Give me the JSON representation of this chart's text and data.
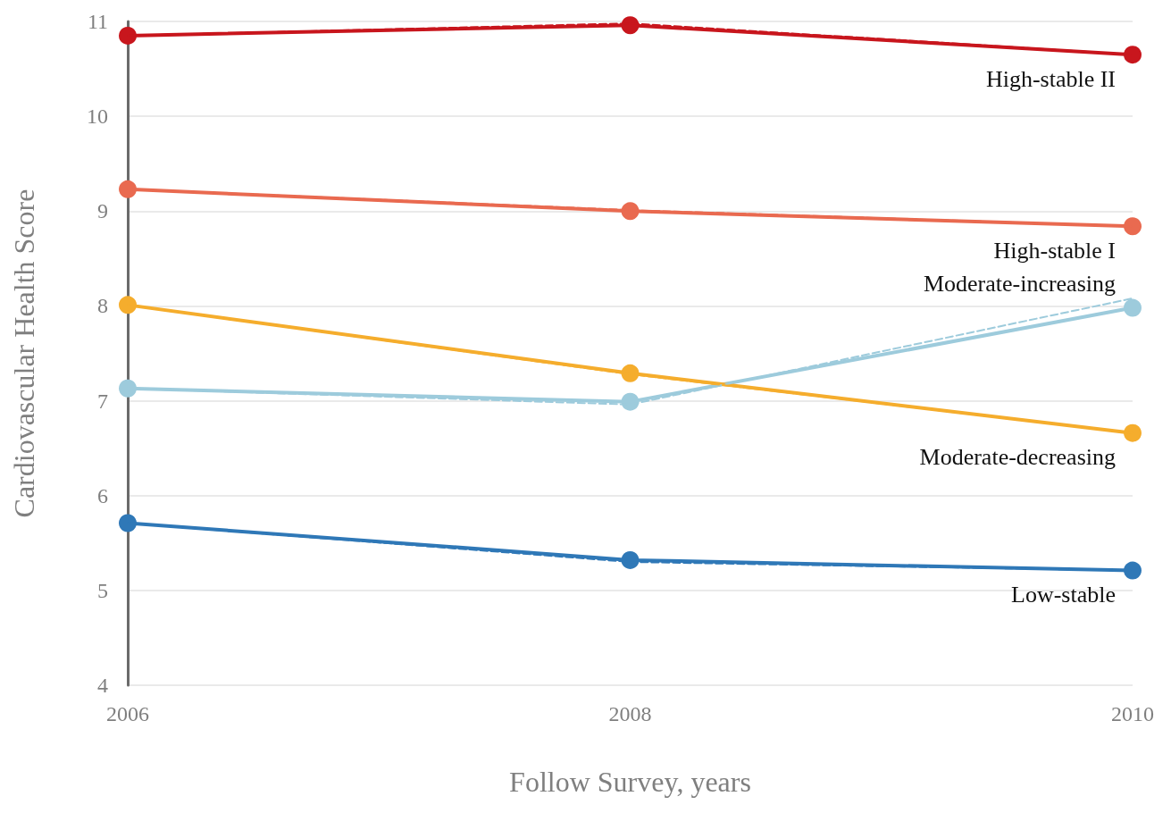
{
  "chart_data": {
    "type": "line",
    "xlabel": "Follow Survey, years",
    "ylabel": "Cardiovascular Health Score",
    "x": [
      2006,
      2008,
      2010
    ],
    "xlim": [
      2006,
      2010
    ],
    "xticks": [
      2006,
      2008,
      2010
    ],
    "ylim": [
      4,
      11
    ],
    "yticks": [
      4,
      5,
      6,
      7,
      8,
      9,
      10,
      11
    ],
    "grid": "y",
    "legend": false,
    "marker": "circle",
    "line_style": "solid",
    "series": [
      {
        "name": "High-stable II",
        "color": "#c8161d",
        "values": [
          10.85,
          10.96,
          10.65
        ]
      },
      {
        "name": "High-stable I",
        "color": "#e96a50",
        "values": [
          9.23,
          9.0,
          8.84
        ]
      },
      {
        "name": "Moderate-increasing",
        "color": "#9dcbdc",
        "values": [
          7.13,
          6.99,
          7.98
        ]
      },
      {
        "name": "Moderate-decreasing",
        "color": "#f5ad2d",
        "values": [
          8.01,
          7.29,
          6.66
        ]
      },
      {
        "name": "Low-stable",
        "color": "#2f78b7",
        "values": [
          5.71,
          5.32,
          5.21
        ]
      },
      {
        "color": "#c8161d",
        "marker": "none",
        "line_style": "dashed",
        "values": [
          10.85,
          10.98,
          10.65
        ]
      },
      {
        "color": "#e96a50",
        "marker": "none",
        "line_style": "dashed",
        "values": [
          9.23,
          9.01,
          8.84
        ]
      },
      {
        "color": "#9dcbdc",
        "marker": "none",
        "line_style": "dashed",
        "values": [
          7.13,
          6.96,
          8.08
        ]
      },
      {
        "color": "#f5ad2d",
        "marker": "none",
        "line_style": "dashed",
        "values": [
          8.01,
          7.28,
          6.66
        ]
      },
      {
        "color": "#2f78b7",
        "marker": "none",
        "line_style": "dashed",
        "values": [
          5.71,
          5.3,
          5.21
        ]
      }
    ]
  }
}
